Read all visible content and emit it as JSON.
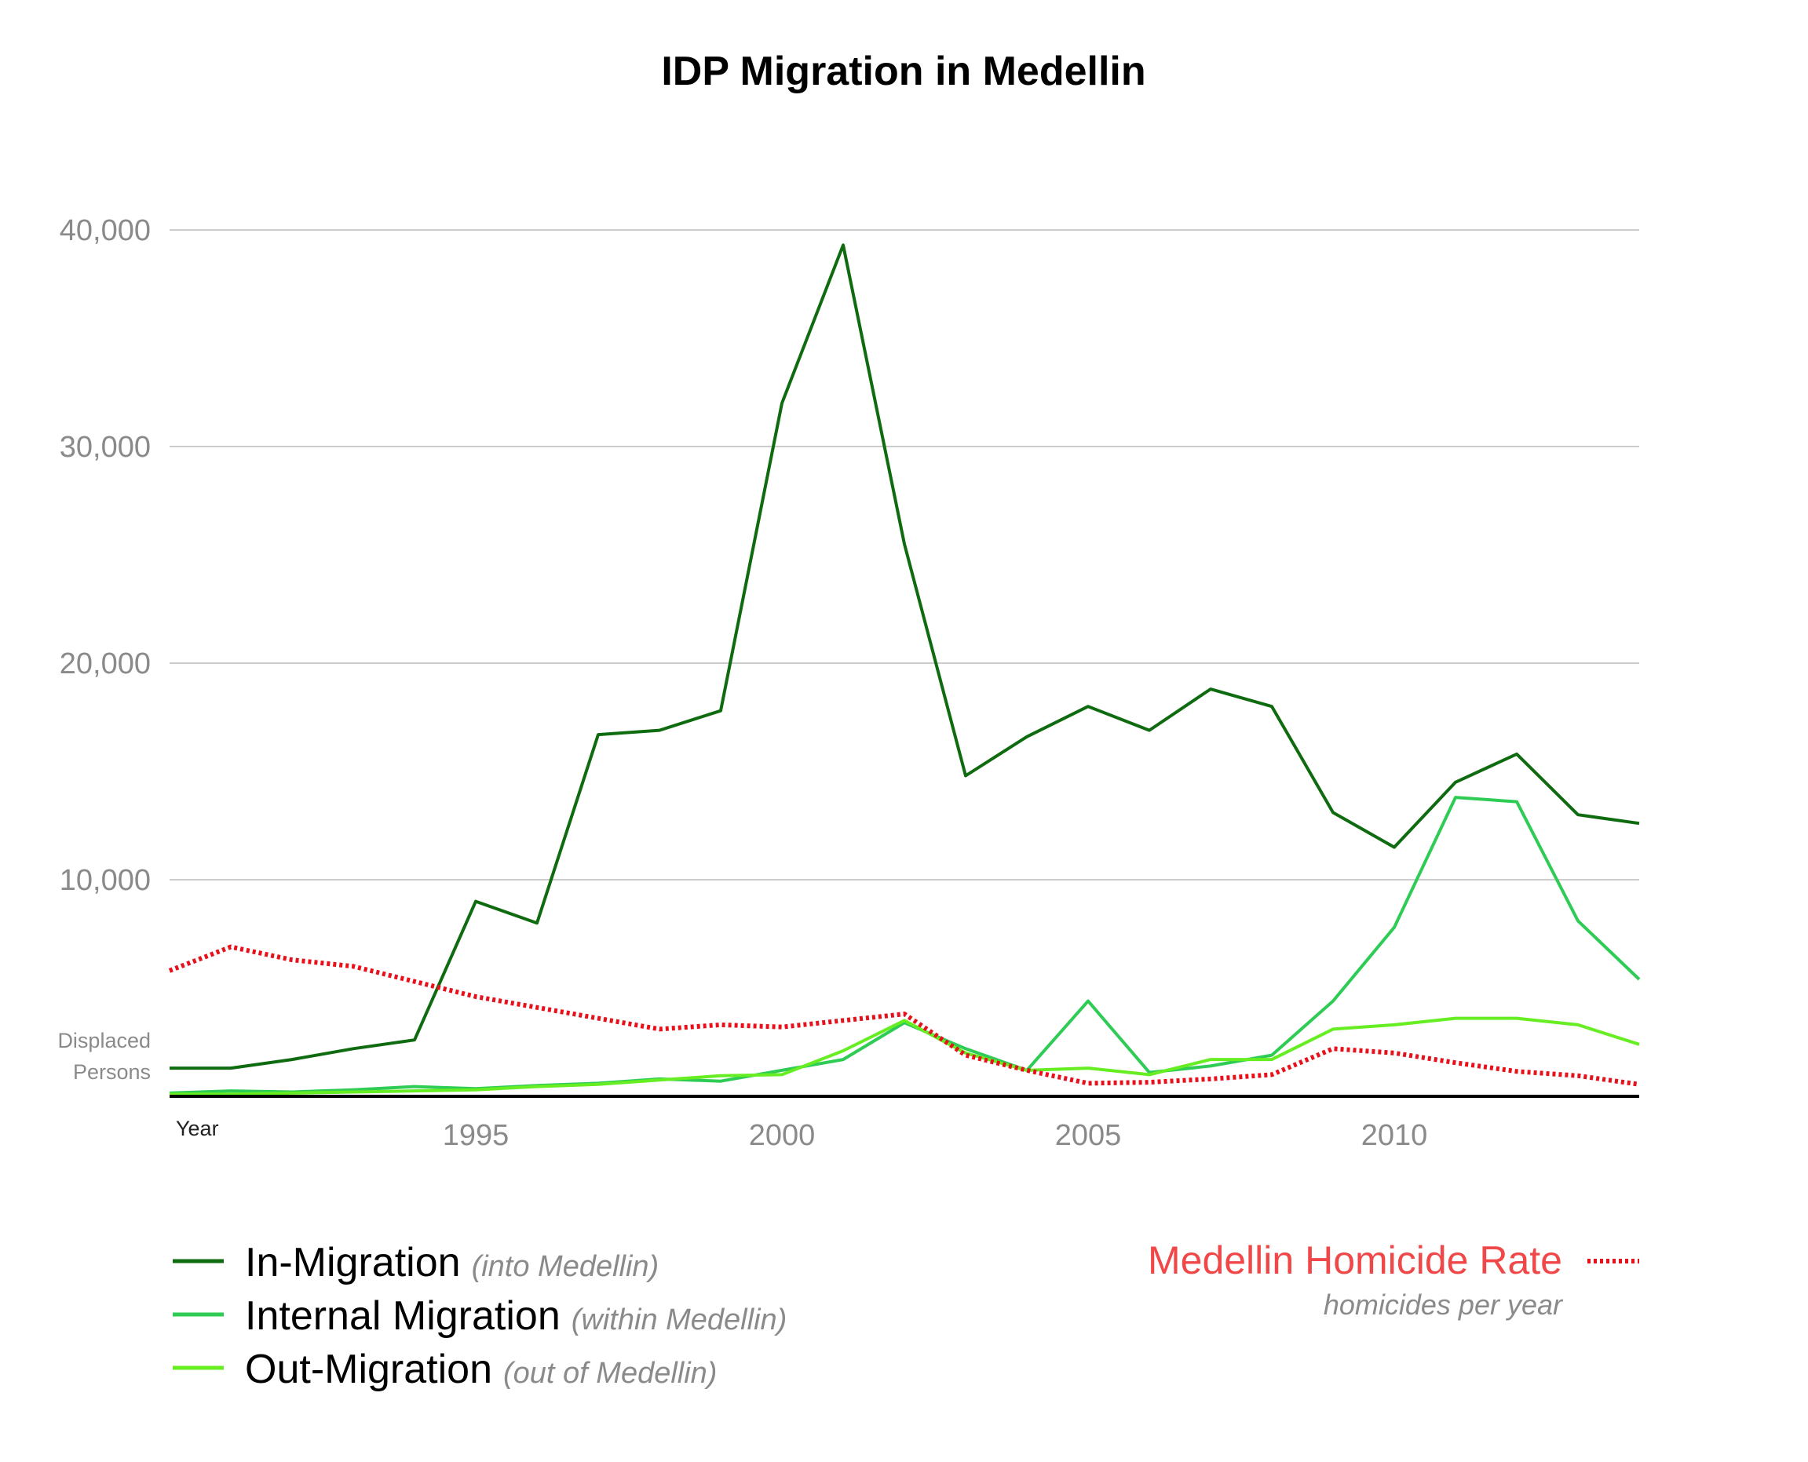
{
  "chart_data": {
    "type": "line",
    "title": "IDP Migration in Medellin",
    "ylabel_lines": [
      "Displaced",
      "Persons"
    ],
    "xlabel": "Year",
    "ylim": [
      0,
      40000
    ],
    "xlim": [
      1990,
      2014
    ],
    "yticks": [
      10000,
      20000,
      30000,
      40000
    ],
    "ytick_labels": [
      "10,000",
      "20,000",
      "30,000",
      "40,000"
    ],
    "xticks": [
      1995,
      2000,
      2005,
      2010
    ],
    "xtick_labels": [
      "1995",
      "2000",
      "2005",
      "2010"
    ],
    "grid": true,
    "legend_position": "bottom",
    "x": [
      1990,
      1991,
      1992,
      1993,
      1994,
      1995,
      1996,
      1997,
      1998,
      1999,
      2000,
      2001,
      2002,
      2003,
      2004,
      2005,
      2006,
      2007,
      2008,
      2009,
      2010,
      2011,
      2012,
      2013,
      2014
    ],
    "series": [
      {
        "name": "In-Migration",
        "note": "(into Medellin)",
        "color": "#0f6b0f",
        "style": "solid",
        "values": [
          1300,
          1300,
          1700,
          2200,
          2600,
          9000,
          8000,
          16700,
          16900,
          17800,
          32000,
          39300,
          25500,
          14800,
          16600,
          18000,
          16900,
          18800,
          18000,
          13100,
          11500,
          14500,
          15800,
          13000,
          12600
        ]
      },
      {
        "name": "Internal Migration",
        "note": "(within Medellin)",
        "color": "#2ecc55",
        "style": "solid",
        "values": [
          150,
          250,
          200,
          300,
          450,
          350,
          500,
          600,
          800,
          700,
          1200,
          1700,
          3400,
          2200,
          1200,
          4400,
          1100,
          1400,
          1900,
          4400,
          7800,
          13800,
          13600,
          8100,
          5400
        ]
      },
      {
        "name": "Out-Migration",
        "note": "(out of  Medellin)",
        "color": "#66ee22",
        "style": "solid",
        "values": [
          100,
          100,
          150,
          200,
          250,
          300,
          450,
          550,
          750,
          950,
          1000,
          2100,
          3500,
          2000,
          1200,
          1300,
          1000,
          1700,
          1700,
          3100,
          3300,
          3600,
          3600,
          3300,
          2400
        ]
      },
      {
        "name": "Medellin Homicide Rate",
        "note": "homicides per year",
        "color": "#e8101a",
        "label_color": "#f04848",
        "style": "dotted",
        "values": [
          5800,
          6900,
          6300,
          6000,
          5300,
          4600,
          4100,
          3600,
          3100,
          3300,
          3200,
          3500,
          3800,
          1900,
          1200,
          600,
          650,
          800,
          1000,
          2200,
          2000,
          1550,
          1150,
          950,
          550
        ]
      }
    ]
  }
}
